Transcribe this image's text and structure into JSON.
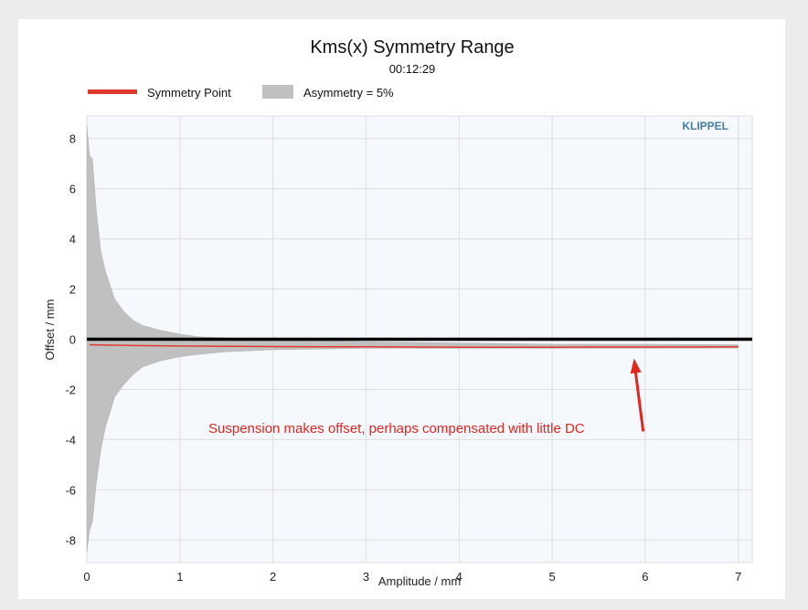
{
  "chart_data": {
    "type": "area",
    "title": "Kms(x) Symmetry Range",
    "subtitle": "00:12:29",
    "xlabel": "Amplitude / mm",
    "ylabel": "Offset / mm",
    "xlim": [
      0,
      7.15
    ],
    "ylim": [
      -8.9,
      8.9
    ],
    "x_ticks": [
      "0",
      "1",
      "2",
      "3",
      "4",
      "5",
      "6",
      "7"
    ],
    "y_ticks": [
      "8",
      "6",
      "4",
      "2",
      "0",
      "-2",
      "-4",
      "-6",
      "-8"
    ],
    "grid": true,
    "legend_position": "top-left",
    "brand": "KLIPPEL",
    "annotation": "Suspension makes offset, perhaps compensated with little DC",
    "annotation_arrow_target": {
      "x": 5.88,
      "y": -0.4
    },
    "series": [
      {
        "name": "Symmetry Point",
        "style": "line",
        "color": "#e03a2f",
        "x": [
          0.03,
          0.5,
          1,
          1.5,
          2,
          2.5,
          3,
          3.5,
          4,
          4.5,
          5,
          5.5,
          6,
          6.5,
          7
        ],
        "y": [
          -0.22,
          -0.25,
          -0.27,
          -0.28,
          -0.29,
          -0.3,
          -0.3,
          -0.31,
          -0.32,
          -0.32,
          -0.32,
          -0.31,
          -0.31,
          -0.31,
          -0.3
        ]
      },
      {
        "name": "Asymmetry = 5%",
        "style": "band",
        "color": "#c0c0c0",
        "x": [
          0.0,
          0.03,
          0.06,
          0.1,
          0.15,
          0.2,
          0.3,
          0.4,
          0.5,
          0.6,
          0.8,
          1.0,
          1.2,
          1.5,
          2.0,
          3.0,
          4.0,
          5.0,
          6.0,
          7.0
        ],
        "upper": [
          8.5,
          7.3,
          7.2,
          5.2,
          3.5,
          2.7,
          1.6,
          1.1,
          0.75,
          0.55,
          0.35,
          0.2,
          0.1,
          0.05,
          0.0,
          -0.1,
          -0.15,
          -0.2,
          -0.2,
          -0.22
        ],
        "lower": [
          -8.5,
          -7.6,
          -7.3,
          -5.8,
          -4.4,
          -3.5,
          -2.3,
          -1.8,
          -1.4,
          -1.1,
          -0.85,
          -0.7,
          -0.6,
          -0.5,
          -0.42,
          -0.36,
          -0.36,
          -0.36,
          -0.36,
          -0.35
        ]
      },
      {
        "name": "",
        "style": "line",
        "color": "#000000",
        "x": [
          0,
          7.15
        ],
        "y": [
          0,
          0
        ]
      }
    ]
  }
}
